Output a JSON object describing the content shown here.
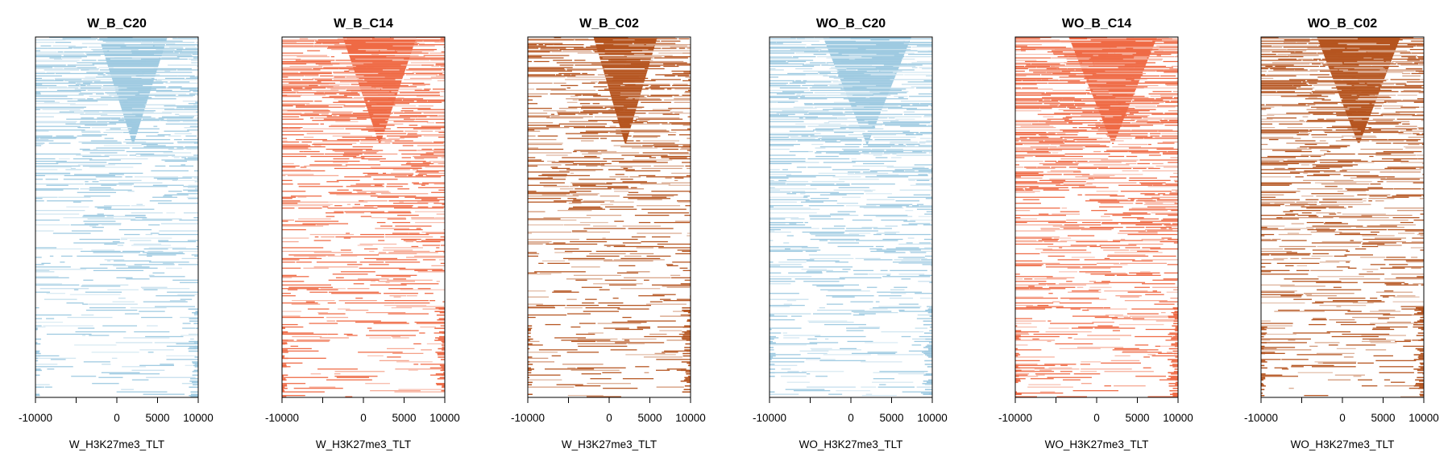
{
  "chart_data": [
    {
      "type": "heatmap",
      "title": "W_B_C20",
      "xlabel": "W_H3K27me3_TLT",
      "xlim": [
        -10000,
        10000
      ],
      "xticks": [
        -10000,
        -5000,
        0,
        5000,
        10000
      ],
      "tick_labels": [
        "-10000",
        "",
        "0",
        "5000",
        "10000"
      ],
      "color": "#9ecae1",
      "row_density_top": 0.9,
      "row_density_bottom": 0.18,
      "center_funnel": 0.7,
      "right_tail": 0.12
    },
    {
      "type": "heatmap",
      "title": "W_B_C14",
      "xlabel": "W_H3K27me3_TLT",
      "xlim": [
        -10000,
        10000
      ],
      "xticks": [
        -10000,
        -5000,
        0,
        5000,
        10000
      ],
      "tick_labels": [
        "-10000",
        "",
        "0",
        "5000",
        "10000"
      ],
      "color": "#ef6a45",
      "row_density_top": 0.95,
      "row_density_bottom": 0.2,
      "center_funnel": 0.75,
      "right_tail": 0.15
    },
    {
      "type": "heatmap",
      "title": "W_B_C02",
      "xlabel": "W_H3K27me3_TLT",
      "xlim": [
        -10000,
        10000
      ],
      "xticks": [
        -10000,
        -5000,
        0,
        5000,
        10000
      ],
      "tick_labels": [
        "-10000",
        "",
        "0",
        "5000",
        "10000"
      ],
      "color": "#b5541f",
      "row_density_top": 0.85,
      "row_density_bottom": 0.25,
      "center_funnel": 0.65,
      "right_tail": 0.15
    },
    {
      "type": "heatmap",
      "title": "WO_B_C20",
      "xlabel": "WO_H3K27me3_TLT",
      "xlim": [
        -10000,
        10000
      ],
      "xticks": [
        -10000,
        -5000,
        0,
        5000,
        10000
      ],
      "tick_labels": [
        "-10000",
        "",
        "0",
        "5000",
        "10000"
      ],
      "color": "#9ecae1",
      "row_density_top": 0.95,
      "row_density_bottom": 0.25,
      "center_funnel": 0.9,
      "right_tail": 0.15
    },
    {
      "type": "heatmap",
      "title": "WO_B_C14",
      "xlabel": "WO_H3K27me3_TLT",
      "xlim": [
        -10000,
        10000
      ],
      "xticks": [
        -10000,
        -5000,
        0,
        5000,
        10000
      ],
      "tick_labels": [
        "-10000",
        "",
        "0",
        "5000",
        "10000"
      ],
      "color": "#ef6a45",
      "row_density_top": 1.0,
      "row_density_bottom": 0.35,
      "center_funnel": 0.9,
      "right_tail": 0.2
    },
    {
      "type": "heatmap",
      "title": "WO_B_C02",
      "xlabel": "WO_H3K27me3_TLT",
      "xlim": [
        -10000,
        10000
      ],
      "xticks": [
        -10000,
        -5000,
        0,
        5000,
        10000
      ],
      "tick_labels": [
        "-10000",
        "",
        "0",
        "5000",
        "10000"
      ],
      "color": "#b5541f",
      "row_density_top": 0.9,
      "row_density_bottom": 0.3,
      "center_funnel": 0.85,
      "right_tail": 0.2
    }
  ]
}
